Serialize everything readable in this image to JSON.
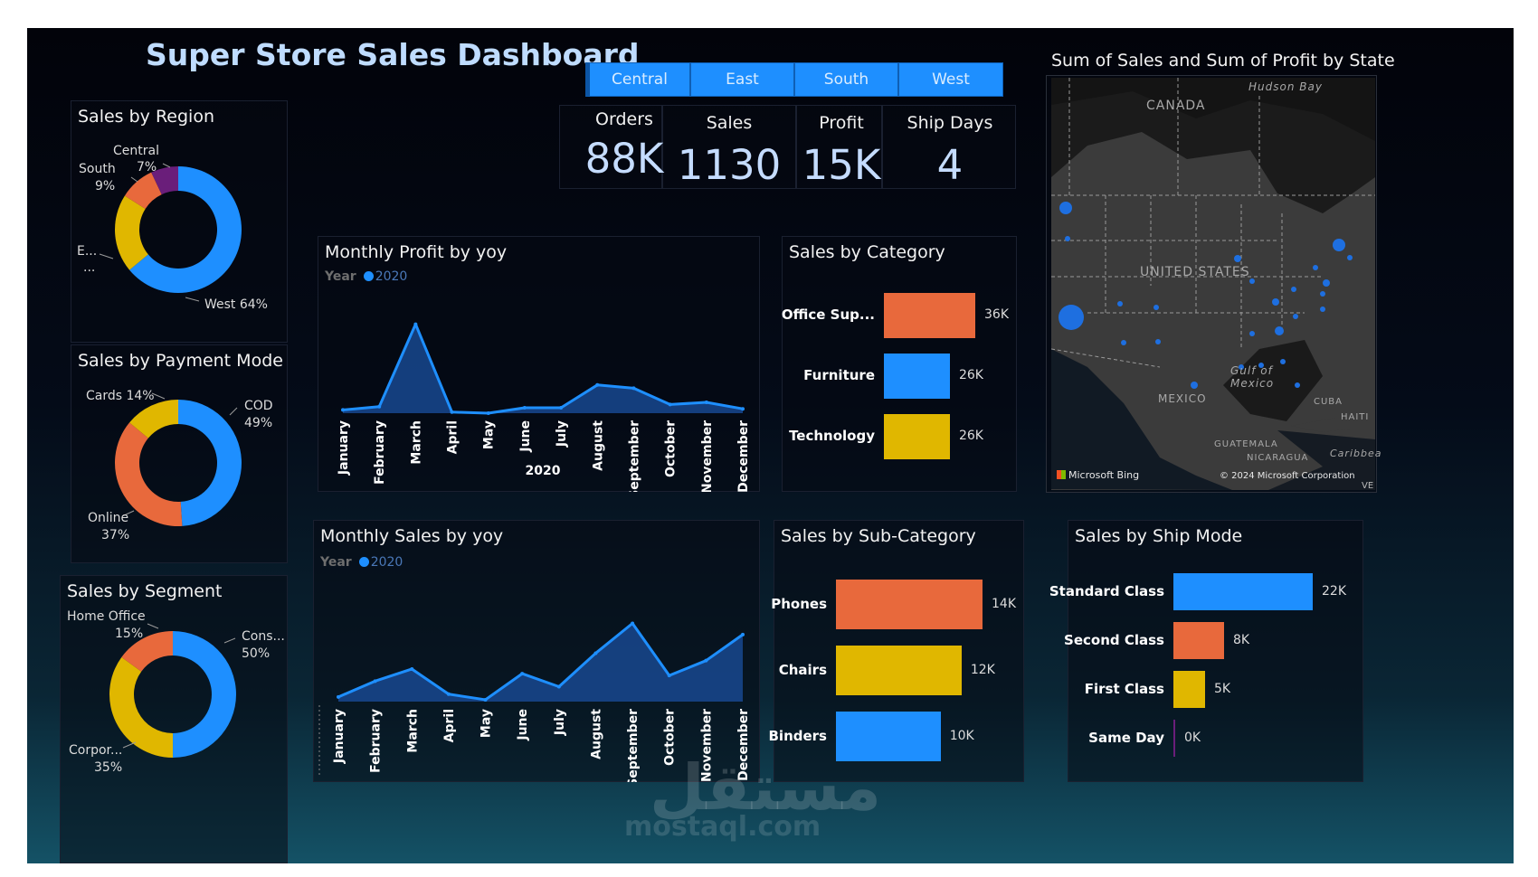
{
  "title": "Super Store Sales Dashboard",
  "slicer": [
    "Central",
    "East",
    "South",
    "West"
  ],
  "kpis": [
    {
      "label": "Orders",
      "value": "88K"
    },
    {
      "label": "Sales",
      "value": "1130"
    },
    {
      "label": "Profit",
      "value": "15K"
    },
    {
      "label": "Ship Days",
      "value": "4"
    }
  ],
  "panels": {
    "region": "Sales by Region",
    "payment": "Sales by Payment Mode",
    "segment": "Sales by Segment",
    "profit": "Monthly Profit by yoy",
    "sales": "Monthly Sales by yoy",
    "category": "Sales by Category",
    "subcategory": "Sales by Sub-Category",
    "shipmode": "Sales by Ship Mode",
    "map": "Sum of Sales and Sum of Profit by State"
  },
  "legend": {
    "key": "Year",
    "series": "2020"
  },
  "colors": {
    "blue": "#1e8fff",
    "orange": "#e8693c",
    "yellow": "#e0b700",
    "purple": "#6a1e7a"
  },
  "map": {
    "labels": [
      "Hudson Bay",
      "CANADA",
      "UNITED STATES",
      "Gulf of",
      "Mexico",
      "MEXICO",
      "CUBA",
      "HAITI",
      "GUATEMALA",
      "NICARAGUA",
      "Caribbea"
    ],
    "brand": "Microsoft Bing",
    "copyright": "© 2024 Microsoft Corporation",
    "ve": "VE"
  },
  "watermark": "مستقل",
  "watermark_latin": "mostaql.com",
  "chart_data": [
    {
      "type": "pie",
      "title": "Sales by Region",
      "slices": [
        {
          "label": "West",
          "value": 64,
          "display": "West 64%",
          "color": "#1e8fff"
        },
        {
          "label": "E...",
          "value": 20,
          "display": "E...",
          "display2": "...",
          "color": "#e0b700"
        },
        {
          "label": "South",
          "value": 9,
          "display": "South",
          "display2": "9%",
          "color": "#e8693c"
        },
        {
          "label": "Central",
          "value": 7,
          "display": "Central",
          "display2": "7%",
          "color": "#6a1e7a"
        }
      ]
    },
    {
      "type": "pie",
      "title": "Sales by Payment Mode",
      "slices": [
        {
          "label": "COD",
          "value": 49,
          "display": "COD",
          "display2": "49%",
          "color": "#1e8fff"
        },
        {
          "label": "Online",
          "value": 37,
          "display": "Online",
          "display2": "37%",
          "color": "#e8693c"
        },
        {
          "label": "Cards",
          "value": 14,
          "display": "Cards 14%",
          "color": "#e0b700"
        }
      ]
    },
    {
      "type": "pie",
      "title": "Sales by Segment",
      "slices": [
        {
          "label": "Cons...",
          "value": 50,
          "display": "Cons...",
          "display2": "50%",
          "color": "#1e8fff"
        },
        {
          "label": "Corpor...",
          "value": 35,
          "display": "Corpor...",
          "display2": "35%",
          "color": "#e0b700"
        },
        {
          "label": "Home Office",
          "value": 15,
          "display": "Home Office",
          "display2": "15%",
          "color": "#e8693c"
        }
      ]
    },
    {
      "type": "area",
      "title": "Monthly Profit by yoy",
      "xlabel": "2020",
      "categories": [
        "January",
        "February",
        "March",
        "April",
        "May",
        "June",
        "July",
        "August",
        "September",
        "October",
        "November",
        "December"
      ],
      "series": [
        {
          "name": "2020",
          "values": [
            150,
            300,
            4100,
            50,
            0,
            250,
            250,
            1300,
            1150,
            400,
            500,
            200
          ]
        }
      ],
      "ylim": [
        0,
        4500
      ]
    },
    {
      "type": "area",
      "title": "Monthly Sales by yoy",
      "xlabel": "2020",
      "categories": [
        "January",
        "February",
        "March",
        "April",
        "May",
        "June",
        "July",
        "August",
        "September",
        "October",
        "November",
        "December"
      ],
      "series": [
        {
          "name": "2020",
          "values": [
            5,
            22,
            35,
            8,
            2,
            30,
            16,
            52,
            84,
            28,
            44,
            72
          ]
        }
      ],
      "ylim": [
        0,
        100
      ]
    },
    {
      "type": "bar",
      "title": "Sales by Category",
      "categories": [
        "Office Sup...",
        "Furniture",
        "Technology"
      ],
      "values": [
        36,
        26,
        26
      ],
      "labels": [
        "36K",
        "26K",
        "26K"
      ],
      "colors": [
        "#e8693c",
        "#1e8fff",
        "#e0b700"
      ],
      "xlim": [
        0,
        36
      ]
    },
    {
      "type": "bar",
      "title": "Sales by Sub-Category",
      "categories": [
        "Phones",
        "Chairs",
        "Binders"
      ],
      "values": [
        14,
        12,
        10
      ],
      "labels": [
        "14K",
        "12K",
        "10K"
      ],
      "colors": [
        "#e8693c",
        "#e0b700",
        "#1e8fff"
      ],
      "xlim": [
        0,
        14
      ]
    },
    {
      "type": "bar",
      "title": "Sales by Ship Mode",
      "categories": [
        "Standard Class",
        "Second Class",
        "First Class",
        "Same Day"
      ],
      "values": [
        22,
        8,
        5,
        0
      ],
      "labels": [
        "22K",
        "8K",
        "5K",
        "0K"
      ],
      "colors": [
        "#1e8fff",
        "#e8693c",
        "#e0b700",
        "#6a1e7a"
      ],
      "xlim": [
        0,
        22
      ]
    }
  ]
}
